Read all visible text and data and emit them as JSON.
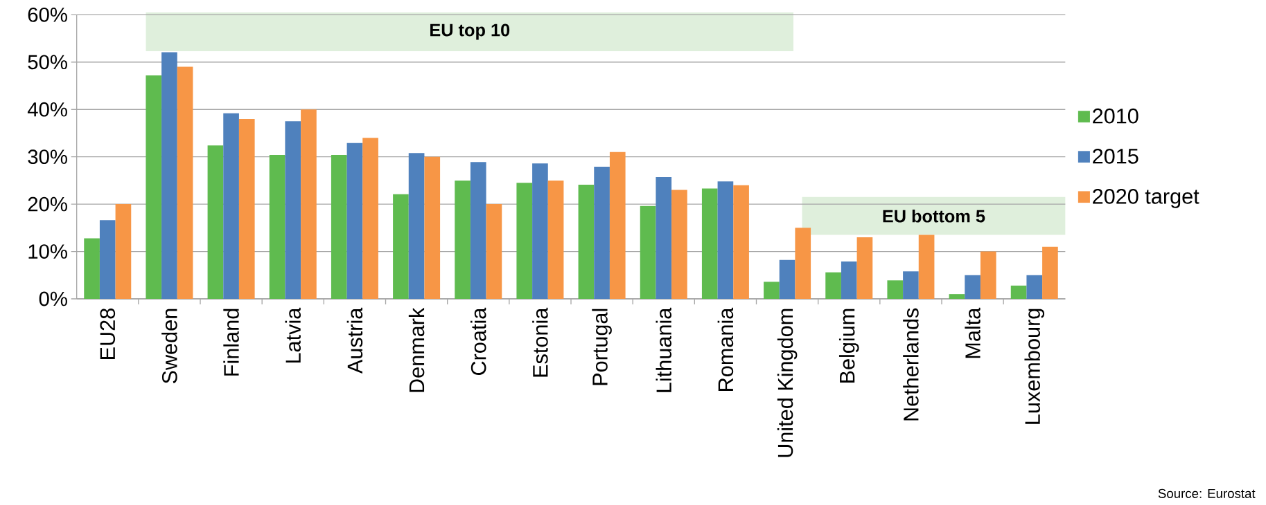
{
  "chart_data": {
    "type": "bar",
    "categories": [
      "EU28",
      "Sweden",
      "Finland",
      "Latvia",
      "Austria",
      "Denmark",
      "Croatia",
      "Estonia",
      "Portugal",
      "Lithuania",
      "Romania",
      "United Kingdom",
      "Belgium",
      "Netherlands",
      "Malta",
      "Luxembourg"
    ],
    "series": [
      {
        "name": "2010",
        "color": "#5fbb4f",
        "values": [
          12.8,
          47.2,
          32.4,
          30.4,
          30.4,
          22.1,
          25.0,
          24.5,
          24.1,
          19.6,
          23.3,
          3.6,
          5.6,
          3.9,
          1.0,
          2.8
        ]
      },
      {
        "name": "2015",
        "color": "#4f81bd",
        "values": [
          16.6,
          52.1,
          39.2,
          37.5,
          32.9,
          30.8,
          28.9,
          28.6,
          27.9,
          25.7,
          24.8,
          8.2,
          7.9,
          5.8,
          5.0,
          5.0
        ]
      },
      {
        "name": "2020 target",
        "color": "#f79646",
        "values": [
          20,
          49,
          38,
          40,
          34,
          30,
          20,
          25,
          31,
          23,
          24,
          15,
          13,
          13.5,
          10,
          11
        ]
      }
    ],
    "ylim": [
      0,
      60
    ],
    "yticks": [
      {
        "value": 0,
        "label": "0%"
      },
      {
        "value": 10,
        "label": "10%"
      },
      {
        "value": 20,
        "label": "20%"
      },
      {
        "value": 30,
        "label": "30%"
      },
      {
        "value": 40,
        "label": "40%"
      },
      {
        "value": 50,
        "label": "50%"
      },
      {
        "value": 60,
        "label": "60%"
      }
    ],
    "grid": "y",
    "legend": "right",
    "annotations": [
      "EU top 10",
      "EU bottom 5",
      "Source: Eurostat"
    ]
  }
}
